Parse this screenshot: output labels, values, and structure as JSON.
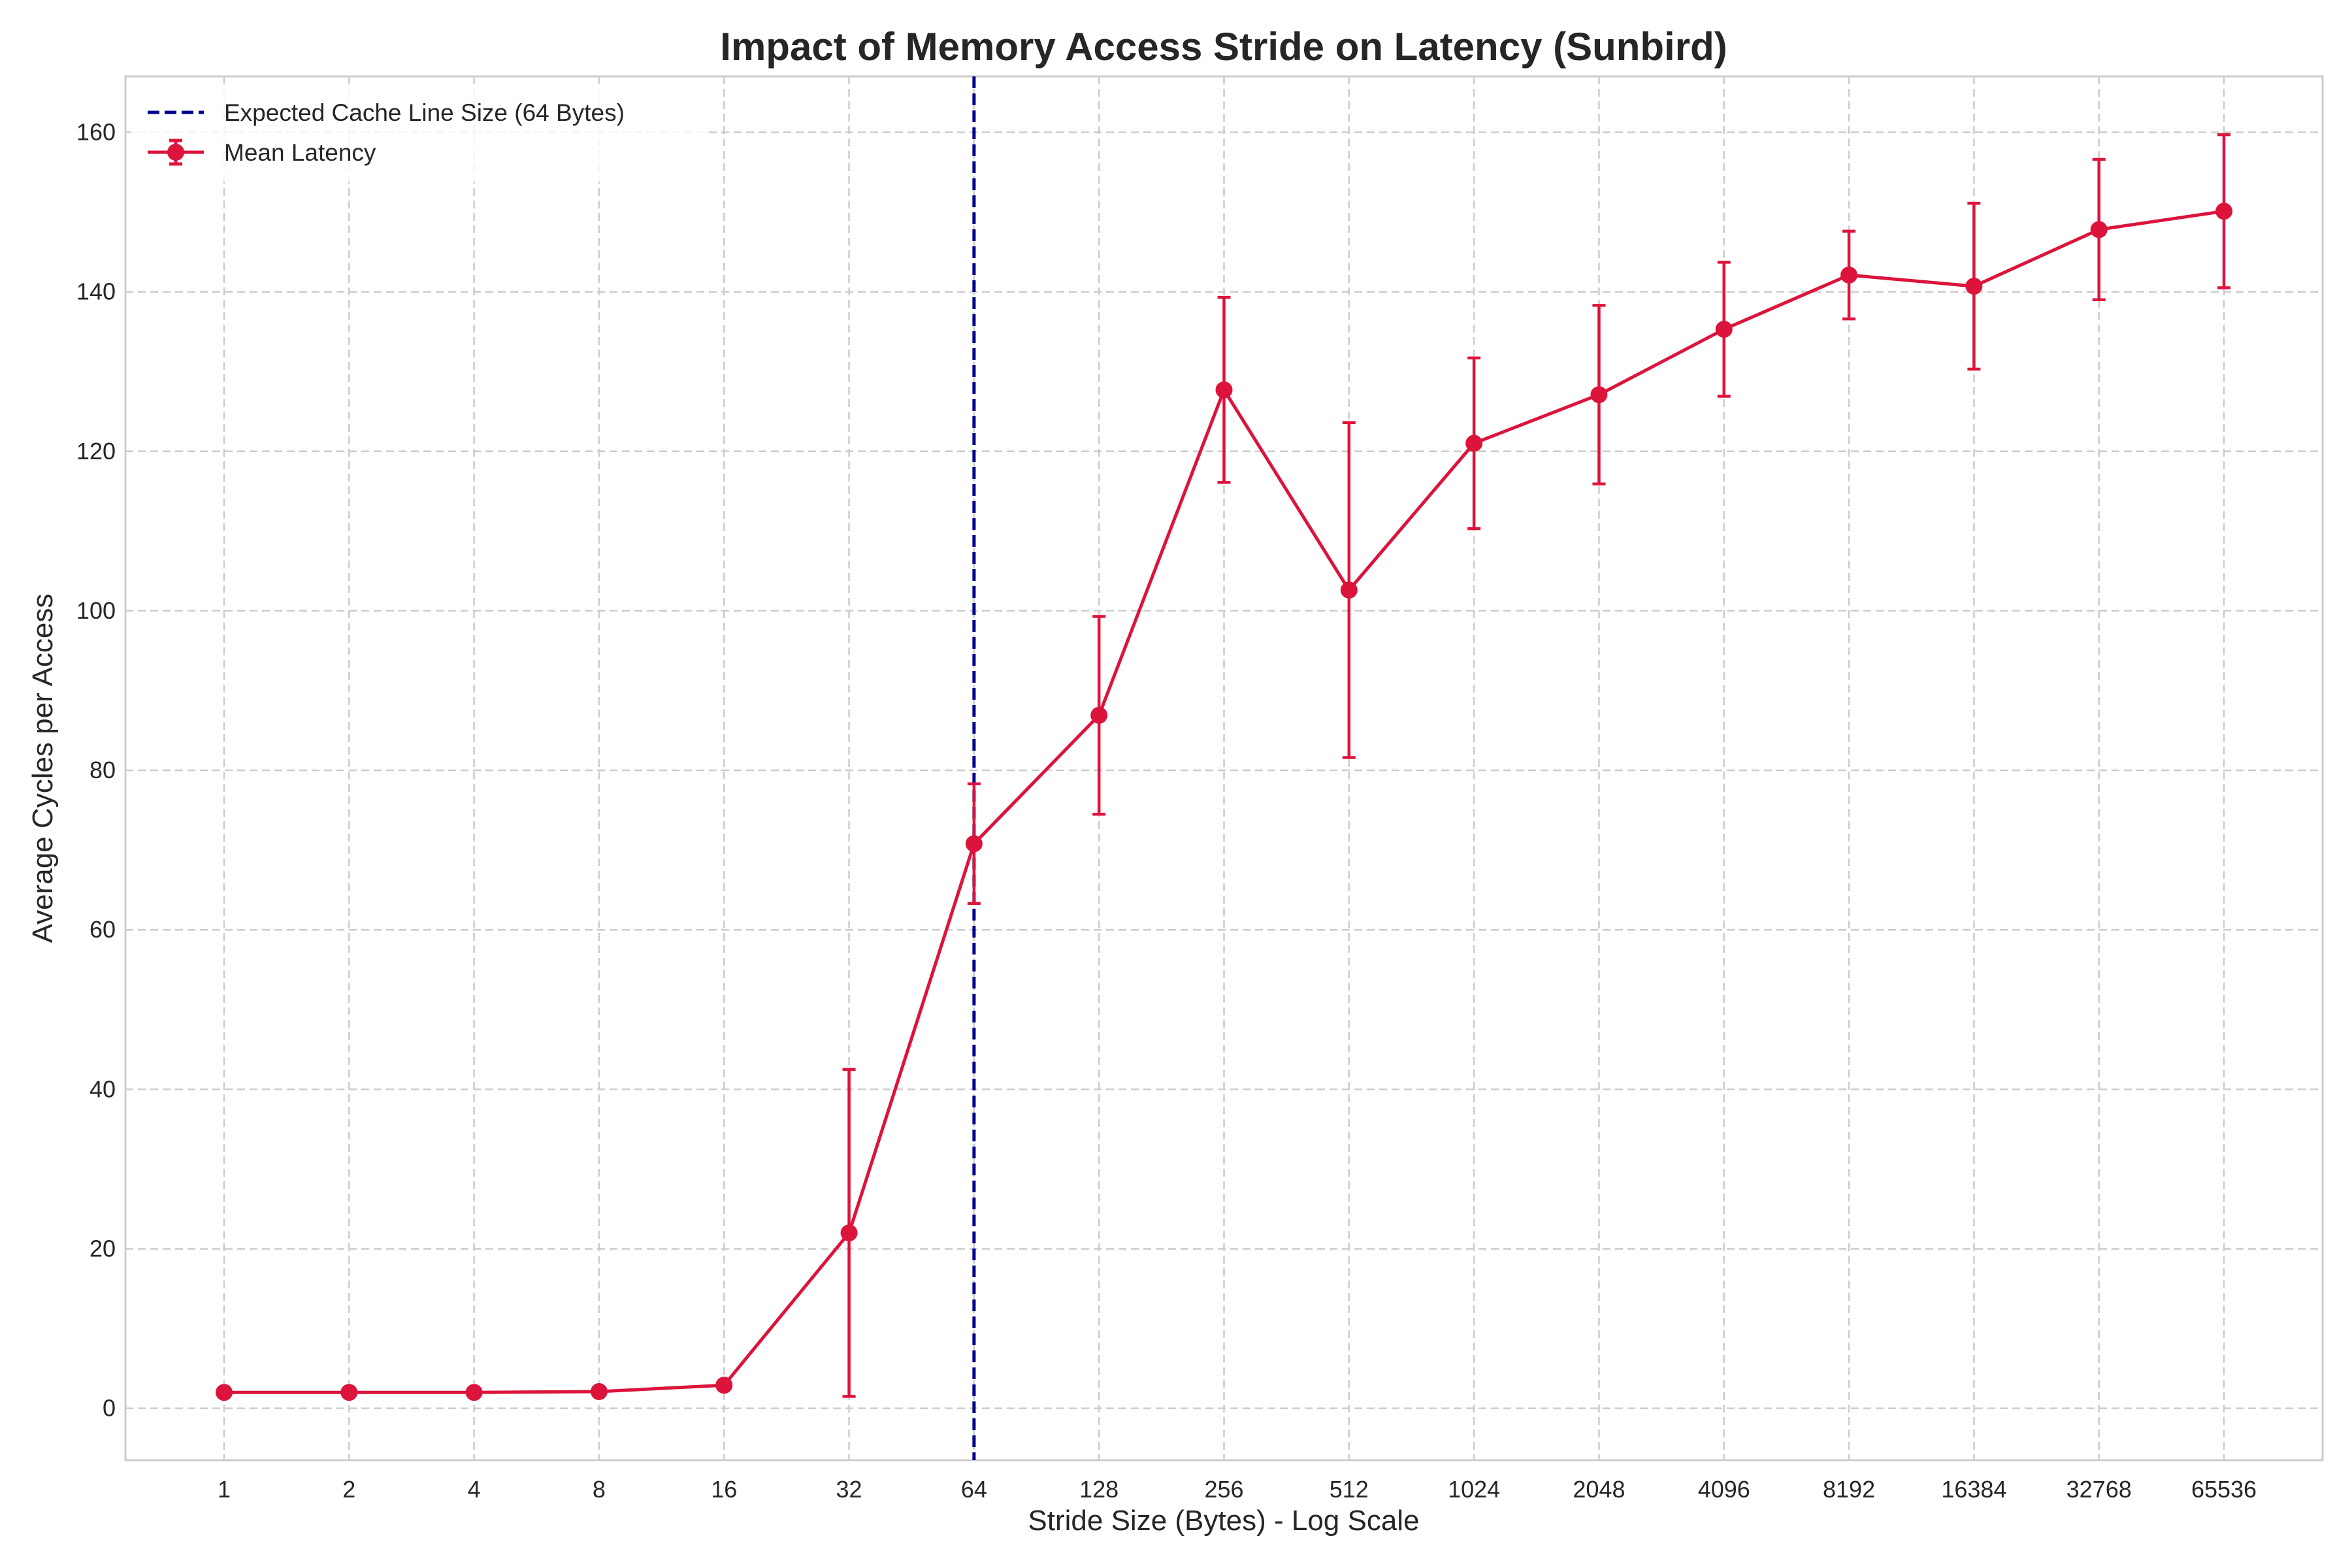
{
  "chart_data": {
    "type": "line",
    "title": "Impact of Memory Access Stride on Latency (Sunbird)",
    "xlabel": "Stride Size (Bytes) - Log Scale",
    "ylabel": "Average Cycles per Access",
    "x_scale": "log2",
    "x": [
      1,
      2,
      4,
      8,
      16,
      32,
      64,
      128,
      256,
      512,
      1024,
      2048,
      4096,
      8192,
      16384,
      32768,
      65536
    ],
    "x_tick_labels": [
      "1",
      "2",
      "4",
      "8",
      "16",
      "32",
      "64",
      "128",
      "256",
      "512",
      "1024",
      "2048",
      "4096",
      "8192",
      "16384",
      "32768",
      "65536"
    ],
    "ylim": [
      -6.5,
      167
    ],
    "y_ticks": [
      0,
      20,
      40,
      60,
      80,
      100,
      120,
      140,
      160
    ],
    "grid": true,
    "legend_position": "top-left",
    "series": [
      {
        "name": "Mean Latency",
        "color": "#dc143c",
        "marker": "circle",
        "values": [
          2.0,
          2.0,
          2.0,
          2.1,
          2.9,
          22.0,
          70.8,
          86.9,
          127.7,
          102.6,
          121.0,
          127.1,
          135.3,
          142.1,
          140.7,
          147.8,
          150.1
        ],
        "error": [
          0.0,
          0.0,
          0.0,
          0.0,
          0.0,
          20.5,
          7.5,
          12.4,
          11.6,
          21.0,
          10.7,
          11.2,
          8.4,
          5.5,
          10.4,
          8.8,
          9.6
        ]
      }
    ],
    "reference_lines": [
      {
        "name": "Expected Cache Line Size (64 Bytes)",
        "orientation": "vertical",
        "x": 64,
        "color": "#00008b",
        "style": "dashed"
      }
    ]
  }
}
